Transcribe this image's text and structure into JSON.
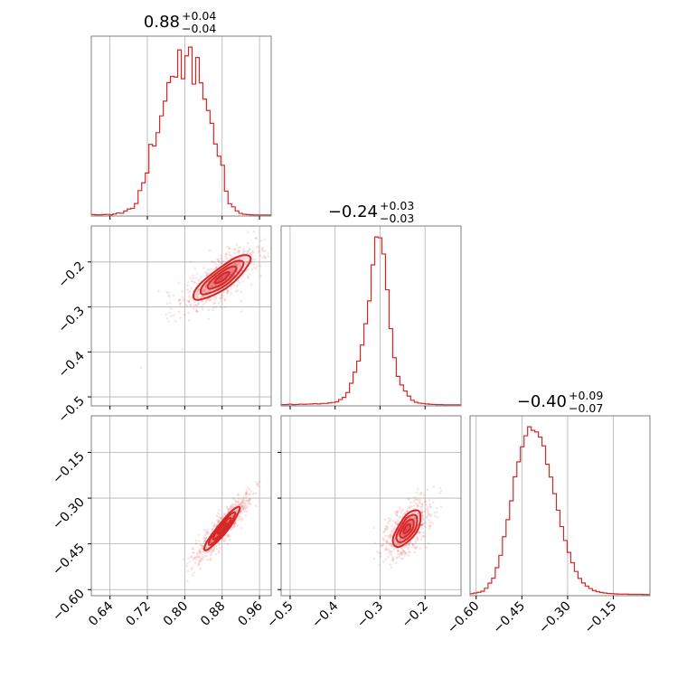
{
  "chart_data": {
    "type": "corner",
    "color": "#d62728",
    "grid": true,
    "parameters": [
      {
        "range": [
          0.6,
          0.985
        ],
        "ticks": [
          0.64,
          0.72,
          0.8,
          0.88,
          0.96
        ],
        "tick_labels": [
          "0.64",
          "0.72",
          "0.80",
          "0.88",
          "0.96"
        ],
        "median": 0.88,
        "title": {
          "base": "0.88",
          "sup": "+0.04",
          "sub": "−0.04"
        }
      },
      {
        "range": [
          -0.52,
          -0.12
        ],
        "ticks": [
          -0.5,
          -0.4,
          -0.3,
          -0.2
        ],
        "tick_labels": [
          "−0.5",
          "−0.4",
          "−0.3",
          "−0.2"
        ],
        "median": -0.24,
        "title": {
          "base": "−0.24",
          "sup": "+0.03",
          "sub": "−0.03"
        }
      },
      {
        "range": [
          -0.62,
          -0.03
        ],
        "ticks": [
          -0.6,
          -0.45,
          -0.3,
          -0.15
        ],
        "tick_labels": [
          "−0.60",
          "−0.45",
          "−0.30",
          "−0.15"
        ],
        "median": -0.4,
        "title": {
          "base": "−0.40",
          "sup": "+0.09",
          "sub": "−0.07"
        }
      }
    ],
    "histograms": [
      {
        "param": 0,
        "bin_width": 0.0077,
        "start": 0.6,
        "counts": [
          0.3,
          0.2,
          0.2,
          0.3,
          0.4,
          0.2,
          0.6,
          1.2,
          1.0,
          2.2,
          3.3,
          3.7,
          6.3,
          13.3,
          17.5,
          22.8,
          38.3,
          37.4,
          44.6,
          53.7,
          61.7,
          71.7,
          75.1,
          74.7,
          89.4,
          73.8,
          86.2,
          90.9,
          70.9,
          85.3,
          71.6,
          62.8,
          56.6,
          49.7,
          38.5,
          31.9,
          27.0,
          13.0,
          6.2,
          4.5,
          2.3,
          1.0,
          0.5,
          0.3,
          0.2,
          0.1,
          0.1,
          0.1,
          0.1,
          0.1
        ]
      },
      {
        "param": 1,
        "bin_width": 0.008,
        "start": -0.52,
        "counts": [
          0.2,
          0.2,
          0.5,
          0.2,
          0.3,
          0.5,
          0.4,
          0.5,
          0.6,
          0.8,
          0.6,
          0.9,
          0.9,
          1.2,
          1.5,
          1.9,
          3.2,
          4.5,
          7.4,
          12.9,
          19.5,
          26.1,
          35.6,
          48.3,
          61.9,
          83.3,
          99.9,
          99.4,
          89.8,
          68.5,
          45.4,
          28.1,
          17.0,
          11.9,
          8.3,
          5.3,
          2.8,
          1.6,
          1.1,
          0.9,
          0.6,
          0.4,
          0.3,
          0.2,
          0.2,
          0.1,
          0.1,
          0.1,
          0.1,
          0.1
        ]
      },
      {
        "param": 2,
        "bin_width": 0.0118,
        "start": -0.62,
        "counts": [
          0.5,
          0.8,
          1.1,
          1.6,
          2.9,
          5.2,
          7.4,
          12.1,
          17.6,
          25.9,
          33.5,
          41.9,
          52.6,
          59.3,
          66.0,
          70.9,
          74.9,
          73.3,
          72.6,
          70.3,
          66.4,
          58.2,
          52.5,
          45.1,
          37.7,
          30.4,
          24.2,
          18.9,
          14.3,
          10.4,
          7.3,
          5.3,
          3.9,
          2.8,
          1.9,
          1.4,
          1.0,
          0.8,
          0.6,
          0.5,
          0.4,
          0.3,
          0.3,
          0.3,
          0.2,
          0.2,
          0.2,
          0.2,
          0.1,
          0.1
        ]
      }
    ],
    "joint_2d": [
      {
        "x_param": 0,
        "y_param": 1,
        "center": [
          0.88,
          -0.235
        ],
        "slope": 0.78,
        "spread_along": 0.038,
        "spread_across": 0.011
      },
      {
        "x_param": 0,
        "y_param": 2,
        "center": [
          0.88,
          -0.4
        ],
        "slope": 1.95,
        "spread_along": 0.04,
        "spread_across": 0.006
      },
      {
        "x_param": 1,
        "y_param": 2,
        "center": [
          -0.24,
          -0.4
        ],
        "slope": 2.6,
        "spread_along": 0.032,
        "spread_across": 0.011
      }
    ]
  }
}
